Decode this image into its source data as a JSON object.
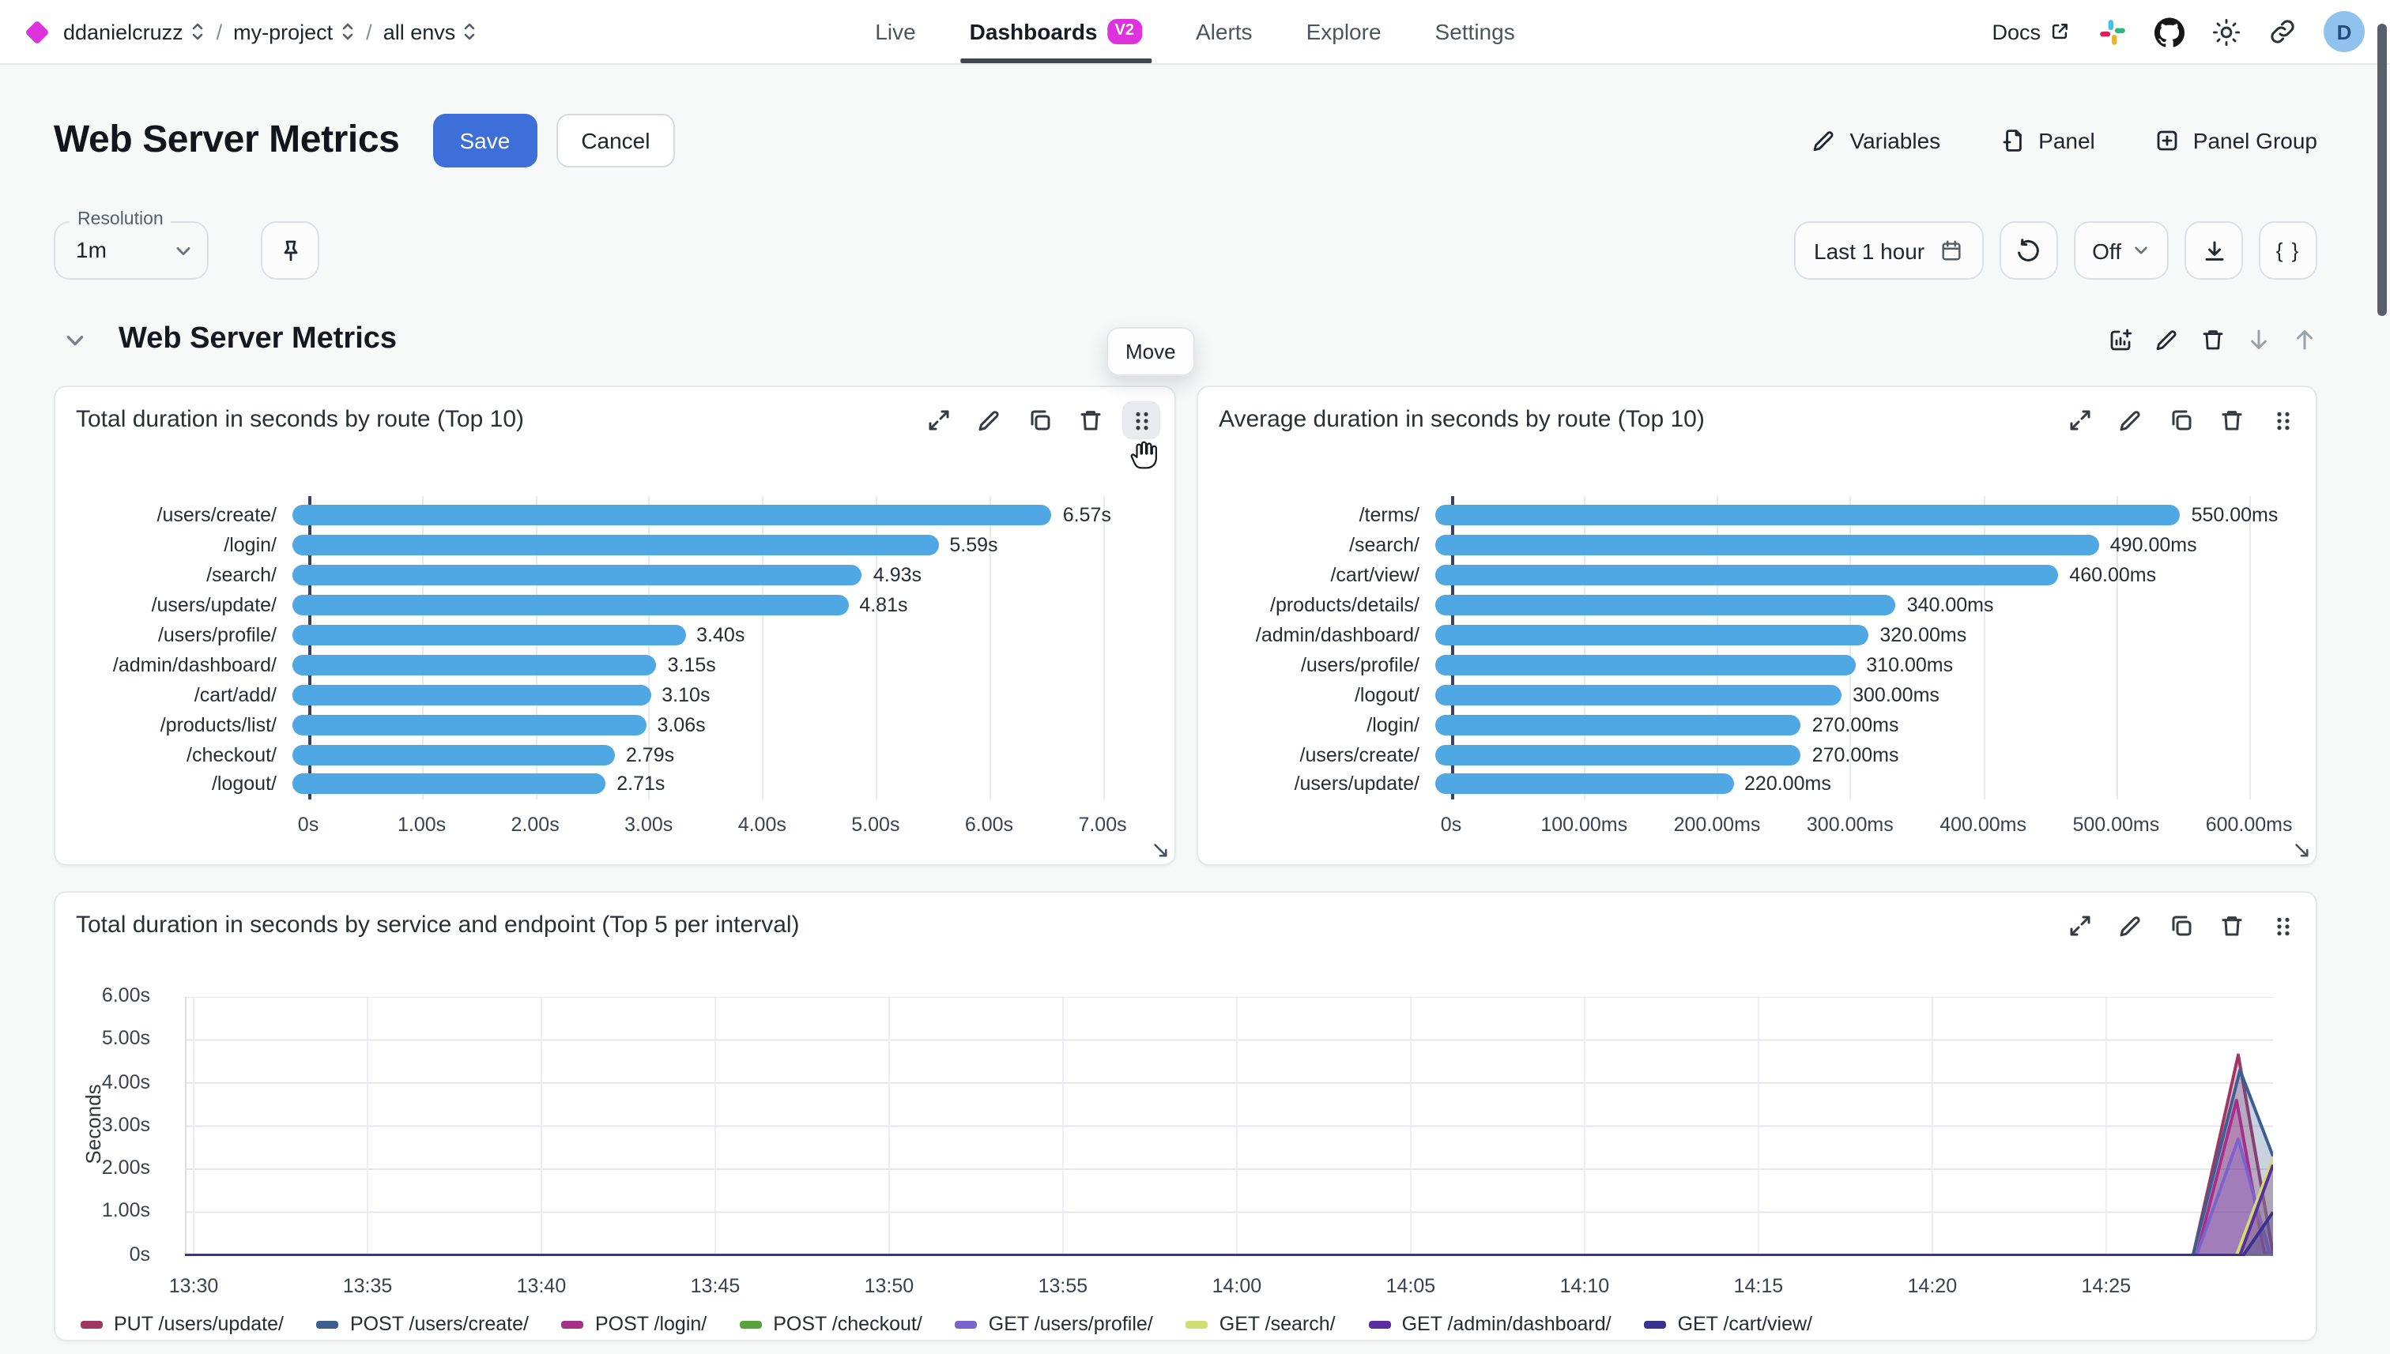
{
  "topnav": {
    "breadcrumb": {
      "org": "ddanielcruzz",
      "separator": "/",
      "project": "my-project",
      "env": "all envs"
    },
    "items": [
      {
        "label": "Live",
        "active": false
      },
      {
        "label": "Dashboards",
        "active": true,
        "badge": "V2"
      },
      {
        "label": "Alerts",
        "active": false
      },
      {
        "label": "Explore",
        "active": false
      },
      {
        "label": "Settings",
        "active": false
      }
    ],
    "docs_label": "Docs",
    "avatar_initial": "D"
  },
  "header": {
    "title": "Web Server Metrics",
    "save_label": "Save",
    "cancel_label": "Cancel",
    "variables_label": "Variables",
    "panel_label": "Panel",
    "panel_group_label": "Panel Group"
  },
  "toolbar": {
    "resolution_label": "Resolution",
    "resolution_value": "1m",
    "time_range": "Last 1 hour",
    "refresh_interval": "Off",
    "braces_label": "{ }"
  },
  "group": {
    "title": "Web Server Metrics",
    "move_tooltip": "Move"
  },
  "colors": {
    "brand_magenta": "#de33dc",
    "accent_blue": "#3e6ed8",
    "bar_blue": "#4fa7e3",
    "active_tab_underline": "#3e4752"
  },
  "chart_data": [
    {
      "type": "bar",
      "orientation": "horizontal",
      "title": "Total duration in seconds by route (Top 10)",
      "categories": [
        "/users/create/",
        "/login/",
        "/search/",
        "/users/update/",
        "/users/profile/",
        "/admin/dashboard/",
        "/cart/add/",
        "/products/list/",
        "/checkout/",
        "/logout/"
      ],
      "values": [
        6.57,
        5.59,
        4.93,
        4.81,
        3.4,
        3.15,
        3.1,
        3.06,
        2.79,
        2.71
      ],
      "value_labels": [
        "6.57s",
        "5.59s",
        "4.93s",
        "4.81s",
        "3.40s",
        "3.15s",
        "3.10s",
        "3.06s",
        "2.79s",
        "2.71s"
      ],
      "xticks": [
        {
          "v": 0,
          "label": "0s"
        },
        {
          "v": 1,
          "label": "1.00s"
        },
        {
          "v": 2,
          "label": "2.00s"
        },
        {
          "v": 3,
          "label": "3.00s"
        },
        {
          "v": 4,
          "label": "4.00s"
        },
        {
          "v": 5,
          "label": "5.00s"
        },
        {
          "v": 6,
          "label": "6.00s"
        },
        {
          "v": 7,
          "label": "7.00s"
        }
      ],
      "xmax": 7.55,
      "bar_color": "#4fa7e3"
    },
    {
      "type": "bar",
      "orientation": "horizontal",
      "title": "Average duration in seconds by route (Top 10)",
      "categories": [
        "/terms/",
        "/search/",
        "/cart/view/",
        "/products/details/",
        "/admin/dashboard/",
        "/users/profile/",
        "/logout/",
        "/login/",
        "/users/create/",
        "/users/update/"
      ],
      "values": [
        550,
        490,
        460,
        340,
        320,
        310,
        300,
        270,
        270,
        220
      ],
      "value_labels": [
        "550.00ms",
        "490.00ms",
        "460.00ms",
        "340.00ms",
        "320.00ms",
        "310.00ms",
        "300.00ms",
        "270.00ms",
        "270.00ms",
        "220.00ms"
      ],
      "xticks": [
        {
          "v": 0,
          "label": "0s"
        },
        {
          "v": 100,
          "label": "100.00ms"
        },
        {
          "v": 200,
          "label": "200.00ms"
        },
        {
          "v": 300,
          "label": "300.00ms"
        },
        {
          "v": 400,
          "label": "400.00ms"
        },
        {
          "v": 500,
          "label": "500.00ms"
        },
        {
          "v": 600,
          "label": "600.00ms"
        }
      ],
      "xmax": 643,
      "bar_color": "#4fa7e3"
    },
    {
      "type": "area",
      "title": "Total duration in seconds by service and endpoint (Top 5 per interval)",
      "ylabel": "Seconds",
      "ymax": 6,
      "yticks": [
        {
          "v": 6,
          "label": "6.00s"
        },
        {
          "v": 5,
          "label": "5.00s"
        },
        {
          "v": 4,
          "label": "4.00s"
        },
        {
          "v": 3,
          "label": "3.00s"
        },
        {
          "v": 2,
          "label": "2.00s"
        },
        {
          "v": 1,
          "label": "1.00s"
        },
        {
          "v": 0,
          "label": "0s"
        }
      ],
      "xticks": [
        "13:30",
        "13:35",
        "13:40",
        "13:45",
        "13:50",
        "13:55",
        "14:00",
        "14:05",
        "14:10",
        "14:15",
        "14:20",
        "14:25"
      ],
      "x_tick_minutes": [
        0,
        5,
        10,
        15,
        20,
        25,
        30,
        35,
        40,
        45,
        50,
        55
      ],
      "x_domain": [
        -0.25,
        59.8
      ],
      "legend_position": "bottom",
      "series": [
        {
          "name": "PUT /users/update/",
          "color": "#a03666",
          "points": [
            [
              -0.25,
              0
            ],
            [
              57.5,
              0
            ],
            [
              58.8,
              4.65
            ],
            [
              59.8,
              0.05
            ]
          ]
        },
        {
          "name": "POST /users/create/",
          "color": "#3d5f90",
          "points": [
            [
              -0.25,
              0
            ],
            [
              57.5,
              0
            ],
            [
              58.85,
              4.3
            ],
            [
              59.8,
              2.3
            ]
          ]
        },
        {
          "name": "POST /login/",
          "color": "#a5308c",
          "points": [
            [
              -0.25,
              0
            ],
            [
              57.6,
              0
            ],
            [
              58.75,
              3.6
            ],
            [
              59.55,
              0.05
            ],
            [
              59.8,
              0.05
            ]
          ]
        },
        {
          "name": "POST /checkout/",
          "color": "#57a23e",
          "points": [
            [
              -0.25,
              0
            ],
            [
              59.8,
              0
            ]
          ]
        },
        {
          "name": "GET /users/profile/",
          "color": "#7a63cc",
          "points": [
            [
              -0.25,
              0
            ],
            [
              57.6,
              0
            ],
            [
              58.8,
              2.7
            ],
            [
              59.7,
              0.05
            ],
            [
              59.8,
              0.05
            ]
          ]
        },
        {
          "name": "GET /search/",
          "color": "#cfdd73",
          "points": [
            [
              -0.25,
              0
            ],
            [
              58.75,
              0
            ],
            [
              59.8,
              2.25
            ]
          ]
        },
        {
          "name": "GET /admin/dashboard/",
          "color": "#5b2da0",
          "points": [
            [
              -0.25,
              0
            ],
            [
              58.85,
              0
            ],
            [
              59.8,
              2.1
            ]
          ]
        },
        {
          "name": "GET /cart/view/",
          "color": "#37338f",
          "points": [
            [
              -0.25,
              0
            ],
            [
              58.95,
              0
            ],
            [
              59.8,
              1.0
            ]
          ]
        }
      ]
    }
  ]
}
